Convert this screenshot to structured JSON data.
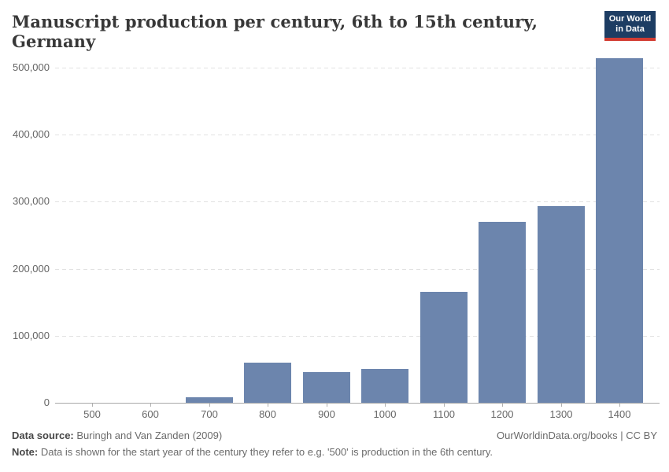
{
  "header": {
    "title": "Manuscript production per century, 6th to 15th century, Germany",
    "logo": {
      "line1": "Our World",
      "line2": "in Data",
      "bg_color": "#1d3d63",
      "accent_color": "#d23c32"
    }
  },
  "chart_data": {
    "type": "bar",
    "title": "Manuscript production per century, 6th to 15th century, Germany",
    "categories": [
      "500",
      "600",
      "700",
      "800",
      "900",
      "1000",
      "1100",
      "1200",
      "1300",
      "1400"
    ],
    "values": [
      0,
      0,
      8000,
      60000,
      46000,
      50000,
      165000,
      270000,
      293000,
      514000
    ],
    "xlabel": "",
    "ylabel": "",
    "ylim": [
      0,
      540000
    ],
    "yticks": {
      "values": [
        0,
        100000,
        200000,
        300000,
        400000,
        500000
      ],
      "labels": [
        "0",
        "100,000",
        "200,000",
        "300,000",
        "400,000",
        "500,000"
      ]
    },
    "grid": "horizontal-dashed",
    "legend": "none",
    "bar_color": "#6c85ad",
    "gridline_color": "#e2e2e2",
    "axis_color": "#a8a8a8",
    "tick_label_color": "#666666"
  },
  "footer": {
    "source_label": "Data source:",
    "source_text": " Buringh and Van Zanden (2009)",
    "rights": "OurWorldinData.org/books | CC BY",
    "note_label": "Note:",
    "note_text": " Data is shown for the start year of the century they refer to e.g. '500' is production in the 6th century."
  }
}
